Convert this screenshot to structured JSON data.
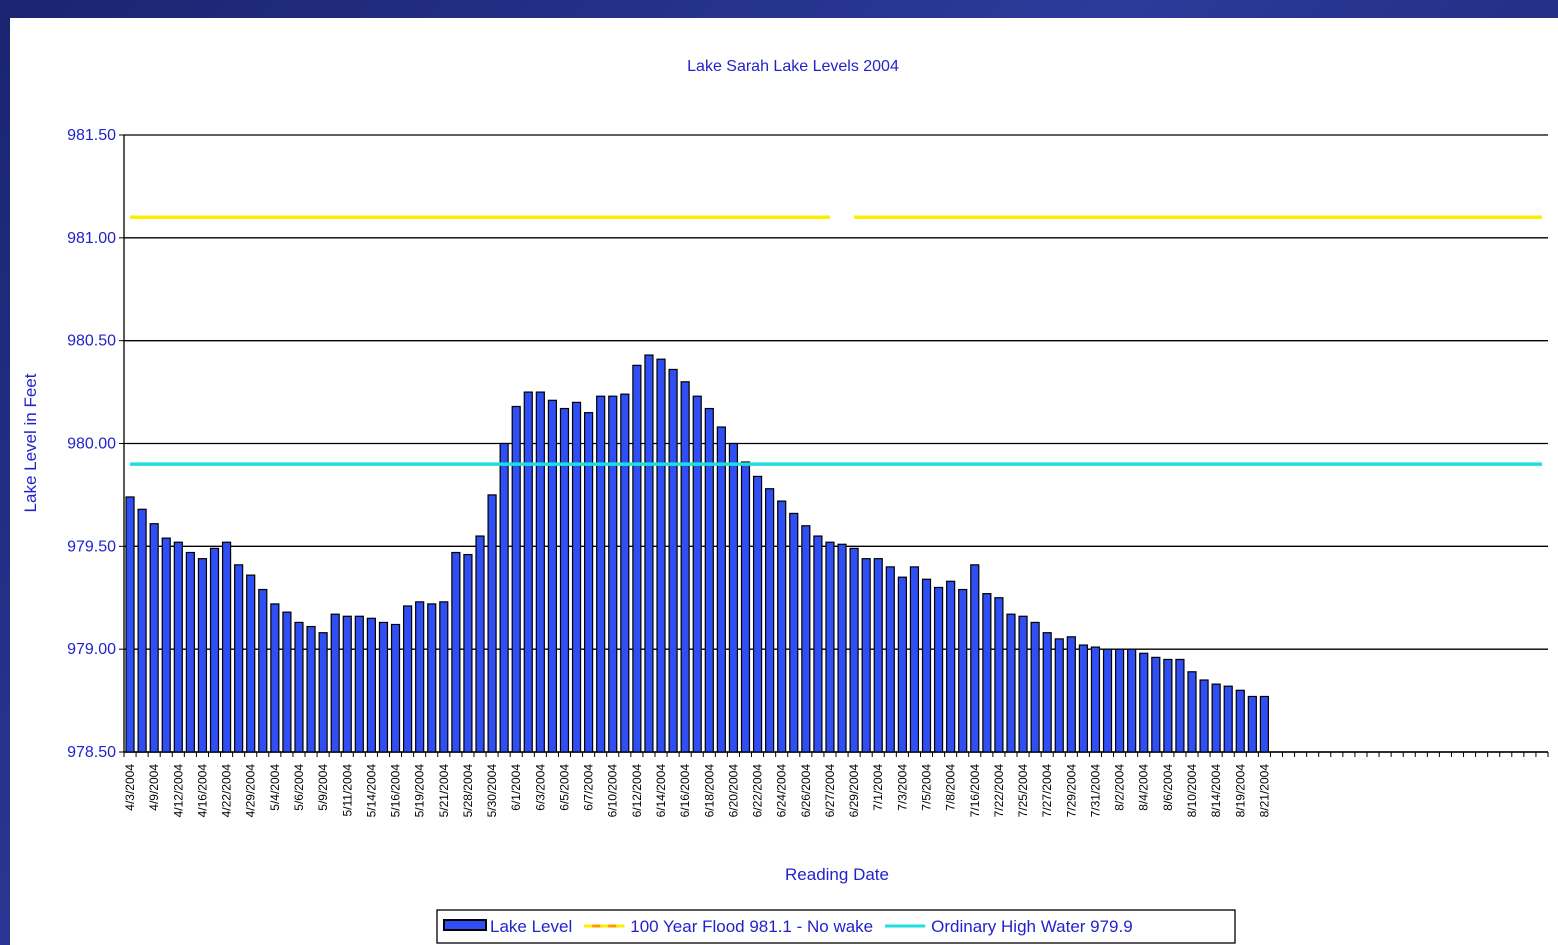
{
  "chart_data": {
    "type": "bar",
    "title": "Lake Sarah Lake Levels 2004",
    "x_label": "Reading Date",
    "y_label": "Lake Level in Feet",
    "categories": [
      "4/3/2004",
      null,
      "4/9/2004",
      null,
      "4/12/2004",
      null,
      "4/16/2004",
      null,
      "4/22/2004",
      null,
      "4/29/2004",
      null,
      "5/4/2004",
      null,
      "5/6/2004",
      null,
      "5/9/2004",
      null,
      "5/11/2004",
      null,
      "5/14/2004",
      null,
      "5/16/2004",
      null,
      "5/19/2004",
      null,
      "5/21/2004",
      null,
      "5/28/2004",
      null,
      "5/30/2004",
      null,
      "6/1/2004",
      null,
      "6/3/2004",
      null,
      "6/5/2004",
      null,
      "6/7/2004",
      null,
      "6/10/2004",
      null,
      "6/12/2004",
      null,
      "6/14/2004",
      null,
      "6/16/2004",
      null,
      "6/18/2004",
      null,
      "6/20/2004",
      null,
      "6/22/2004",
      null,
      "6/24/2004",
      null,
      "6/26/2004",
      null,
      "6/27/2004",
      null,
      "6/29/2004",
      null,
      "7/1/2004",
      null,
      "7/3/2004",
      null,
      "7/5/2004",
      null,
      "7/8/2004",
      null,
      "7/16/2004",
      null,
      "7/22/2004",
      null,
      "7/25/2004",
      null,
      "7/27/2004",
      null,
      "7/29/2004",
      null,
      "7/31/2004",
      null,
      "8/2/2004",
      null,
      "8/4/2004",
      null,
      "8/6/2004",
      null,
      "8/10/2004",
      null,
      "8/14/2004",
      null,
      "8/19/2004",
      null,
      "8/21/2004",
      null,
      null,
      null,
      null,
      null,
      null,
      null,
      null,
      null,
      null,
      null,
      null,
      null,
      null,
      null,
      null,
      null,
      null,
      null,
      null,
      null,
      null,
      null
    ],
    "series": [
      {
        "name": "Lake Level",
        "type": "bar",
        "color": "#2f4ff5",
        "values": [
          979.74,
          979.68,
          979.61,
          979.54,
          979.52,
          979.47,
          979.44,
          979.49,
          979.52,
          979.41,
          979.36,
          979.29,
          979.22,
          979.18,
          979.13,
          979.11,
          979.08,
          979.17,
          979.16,
          979.16,
          979.15,
          979.13,
          979.12,
          979.21,
          979.23,
          979.22,
          979.23,
          979.47,
          979.46,
          979.55,
          979.75,
          980.0,
          980.18,
          980.25,
          980.25,
          980.21,
          980.17,
          980.2,
          980.15,
          980.23,
          980.23,
          980.24,
          980.38,
          980.43,
          980.41,
          980.36,
          980.3,
          980.23,
          980.17,
          980.08,
          980.0,
          979.91,
          979.84,
          979.78,
          979.72,
          979.66,
          979.6,
          979.55,
          979.52,
          979.51,
          979.49,
          979.44,
          979.44,
          979.4,
          979.35,
          979.4,
          979.34,
          979.3,
          979.33,
          979.29,
          979.41,
          979.27,
          979.25,
          979.17,
          979.16,
          979.13,
          979.08,
          979.05,
          979.06,
          979.02,
          979.01,
          979.0,
          979.0,
          979.0,
          978.98,
          978.96,
          978.95,
          978.95,
          978.89,
          978.85,
          978.83,
          978.82,
          978.8,
          978.77,
          978.77,
          null,
          null,
          null,
          null,
          null,
          null,
          null,
          null,
          null,
          null,
          null,
          null,
          null,
          null,
          null,
          null,
          null,
          null,
          null,
          null,
          null,
          null,
          null
        ]
      },
      {
        "name": "100 Year Flood 981.1 - No wake",
        "type": "line",
        "color": "#ffee00",
        "legend_color": "#ff9900",
        "values": [
          981.1,
          981.1,
          981.1,
          981.1,
          981.1,
          981.1,
          981.1,
          981.1,
          981.1,
          981.1,
          981.1,
          981.1,
          981.1,
          981.1,
          981.1,
          981.1,
          981.1,
          981.1,
          981.1,
          981.1,
          981.1,
          981.1,
          981.1,
          981.1,
          981.1,
          981.1,
          981.1,
          981.1,
          981.1,
          981.1,
          981.1,
          981.1,
          981.1,
          981.1,
          981.1,
          981.1,
          981.1,
          981.1,
          981.1,
          981.1,
          981.1,
          981.1,
          981.1,
          981.1,
          981.1,
          981.1,
          981.1,
          981.1,
          981.1,
          981.1,
          981.1,
          981.1,
          981.1,
          981.1,
          981.1,
          981.1,
          981.1,
          981.1,
          981.1,
          null,
          981.1,
          981.1,
          981.1,
          981.1,
          981.1,
          981.1,
          981.1,
          981.1,
          981.1,
          981.1,
          981.1,
          981.1,
          981.1,
          981.1,
          981.1,
          981.1,
          981.1,
          981.1,
          981.1,
          981.1,
          981.1,
          981.1,
          981.1,
          981.1,
          981.1,
          981.1,
          981.1,
          981.1,
          981.1,
          981.1,
          981.1,
          981.1,
          981.1,
          981.1,
          981.1,
          981.1,
          981.1,
          981.1,
          981.1,
          981.1,
          981.1,
          981.1,
          981.1,
          981.1,
          981.1,
          981.1,
          981.1,
          981.1,
          981.1,
          981.1,
          981.1,
          981.1,
          981.1,
          981.1,
          981.1,
          981.1,
          981.1,
          981.1
        ]
      },
      {
        "name": "Ordinary High Water 979.9",
        "type": "line",
        "color": "#22dddd",
        "values": [
          979.9,
          979.9,
          979.9,
          979.9,
          979.9,
          979.9,
          979.9,
          979.9,
          979.9,
          979.9,
          979.9,
          979.9,
          979.9,
          979.9,
          979.9,
          979.9,
          979.9,
          979.9,
          979.9,
          979.9,
          979.9,
          979.9,
          979.9,
          979.9,
          979.9,
          979.9,
          979.9,
          979.9,
          979.9,
          979.9,
          979.9,
          979.9,
          979.9,
          979.9,
          979.9,
          979.9,
          979.9,
          979.9,
          979.9,
          979.9,
          979.9,
          979.9,
          979.9,
          979.9,
          979.9,
          979.9,
          979.9,
          979.9,
          979.9,
          979.9,
          979.9,
          979.9,
          979.9,
          979.9,
          979.9,
          979.9,
          979.9,
          979.9,
          979.9,
          979.9,
          979.9,
          979.9,
          979.9,
          979.9,
          979.9,
          979.9,
          979.9,
          979.9,
          979.9,
          979.9,
          979.9,
          979.9,
          979.9,
          979.9,
          979.9,
          979.9,
          979.9,
          979.9,
          979.9,
          979.9,
          979.9,
          979.9,
          979.9,
          979.9,
          979.9,
          979.9,
          979.9,
          979.9,
          979.9,
          979.9,
          979.9,
          979.9,
          979.9,
          979.9,
          979.9,
          979.9,
          979.9,
          979.9,
          979.9,
          979.9,
          979.9,
          979.9,
          979.9,
          979.9,
          979.9,
          979.9,
          979.9,
          979.9,
          979.9,
          979.9,
          979.9,
          979.9,
          979.9,
          979.9,
          979.9,
          979.9,
          979.9,
          979.9
        ]
      }
    ],
    "ylim": [
      978.5,
      981.5
    ],
    "yticks": [
      {
        "value": 978.5,
        "label": "978.50"
      },
      {
        "value": 979,
        "label": "979.00"
      },
      {
        "value": 979.5,
        "label": "979.50"
      },
      {
        "value": 980,
        "label": "980.00"
      },
      {
        "value": 980.5,
        "label": "980.50"
      },
      {
        "value": 981,
        "label": "981.00"
      },
      {
        "value": 981.5,
        "label": "981.50"
      }
    ],
    "grid": true,
    "legend": "bottom"
  }
}
